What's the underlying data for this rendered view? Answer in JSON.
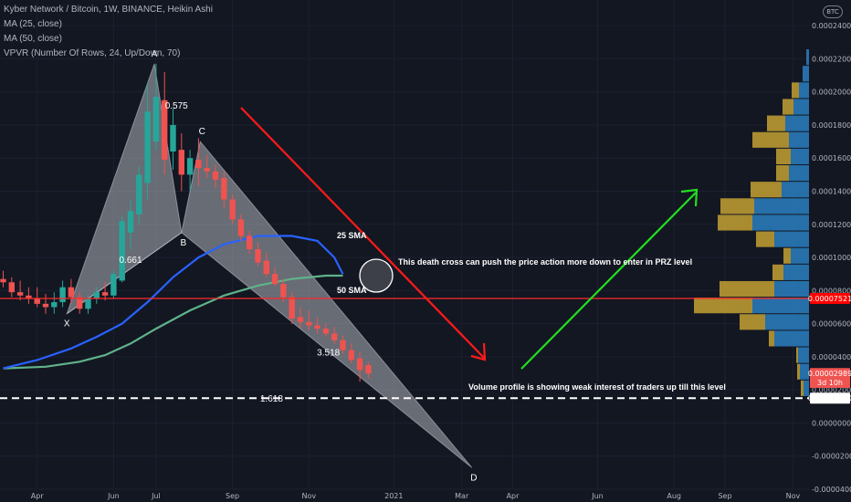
{
  "legend": {
    "symbol_line": "Kyber Network / Bitcoin, 1W, BINANCE, Heikin Ashi",
    "ma25": "MA (25, close)",
    "ma50": "MA (50, close)",
    "vpvr": "VPVR (Number Of Rows, 24, Up/Down, 70)"
  },
  "currency_badge": "BTC",
  "colors": {
    "background": "#131722",
    "up": "#26a69a",
    "down": "#ef5350",
    "ma25": "#2962ff",
    "ma50": "#5fb38a",
    "pattern_fill": "#d1d4dc",
    "vol_up": "#2a7fc1",
    "vol_down": "#c4a032",
    "red_line": "#ff2a2a",
    "red_arrow": "#ff1a1a",
    "green_arrow": "#22e01f"
  },
  "chart_data": {
    "type": "candlestick",
    "title": "Kyber Network / Bitcoin, 1W, BINANCE, Heikin Ashi",
    "y_axis": {
      "range": [
        -4e-05,
        0.00025
      ],
      "tick_labels": [
        "0.00024000",
        "0.00022000",
        "0.00020000",
        "0.00018000",
        "0.00016000",
        "0.00014000",
        "0.00012000",
        "0.00010000",
        "0.00008000",
        "0.00006000",
        "0.00004000",
        "0.00002000",
        "0.00000000",
        "-0.00002000",
        "-0.00004000"
      ],
      "tick_values": [
        0.00024,
        0.00022,
        0.0002,
        0.00018,
        0.00016,
        0.00014,
        0.00012,
        0.0001,
        8e-05,
        6e-05,
        4e-05,
        2e-05,
        0,
        -2e-05,
        -4e-05
      ]
    },
    "x_axis": {
      "tick_labels": [
        "Apr",
        "Jun",
        "Jul",
        "Sep",
        "Nov",
        "2021",
        "Mar",
        "Apr",
        "Jun",
        "Aug",
        "Sep",
        "Nov"
      ],
      "tick_weeks": [
        4,
        13,
        18,
        27,
        36,
        46,
        54,
        60,
        70,
        79,
        85,
        93
      ]
    },
    "price_markers": [
      {
        "label": "0.00007521",
        "value": 7.521e-05,
        "color": "#ff0000"
      },
      {
        "label": "0.00002989",
        "value": 2.989e-05,
        "color": "#ef5350"
      },
      {
        "label": "3d 10h",
        "value": 2.45e-05,
        "color": "#ef5350"
      },
      {
        "label": "0.00001500",
        "value": 1.5e-05,
        "color": "#ffffff"
      }
    ],
    "candles_heikin_ashi": [
      {
        "w": 0,
        "o": 8.7e-05,
        "h": 9.2e-05,
        "l": 8.2e-05,
        "c": 8.5e-05
      },
      {
        "w": 1,
        "o": 8.5e-05,
        "h": 8.8e-05,
        "l": 7.6e-05,
        "c": 7.9e-05
      },
      {
        "w": 2,
        "o": 7.9e-05,
        "h": 8.6e-05,
        "l": 7.4e-05,
        "c": 7.7e-05
      },
      {
        "w": 3,
        "o": 7.7e-05,
        "h": 8.2e-05,
        "l": 7.2e-05,
        "c": 7.5e-05
      },
      {
        "w": 4,
        "o": 7.5e-05,
        "h": 8.2e-05,
        "l": 7e-05,
        "c": 7.2e-05
      },
      {
        "w": 5,
        "o": 7.2e-05,
        "h": 7.8e-05,
        "l": 6.6e-05,
        "c": 7e-05
      },
      {
        "w": 6,
        "o": 7e-05,
        "h": 7.9e-05,
        "l": 6.6e-05,
        "c": 7.3e-05
      },
      {
        "w": 7,
        "o": 7.3e-05,
        "h": 8.6e-05,
        "l": 7e-05,
        "c": 8.2e-05
      },
      {
        "w": 8,
        "o": 8.2e-05,
        "h": 8.7e-05,
        "l": 7.2e-05,
        "c": 7.6e-05
      },
      {
        "w": 9,
        "o": 7.6e-05,
        "h": 7.9e-05,
        "l": 6.6e-05,
        "c": 6.9e-05
      },
      {
        "w": 10,
        "o": 6.9e-05,
        "h": 7.7e-05,
        "l": 6.6e-05,
        "c": 7.5e-05
      },
      {
        "w": 11,
        "o": 7.5e-05,
        "h": 8.2e-05,
        "l": 7.2e-05,
        "c": 7.9e-05
      },
      {
        "w": 12,
        "o": 7.9e-05,
        "h": 8.5e-05,
        "l": 7.4e-05,
        "c": 7.7e-05
      },
      {
        "w": 13,
        "o": 7.7e-05,
        "h": 9.2e-05,
        "l": 7.5e-05,
        "c": 9e-05
      },
      {
        "w": 14,
        "o": 8.6e-05,
        "h": 0.000125,
        "l": 8.5e-05,
        "c": 0.000122
      },
      {
        "w": 15,
        "o": 0.000115,
        "h": 0.000135,
        "l": 0.000105,
        "c": 0.000128
      },
      {
        "w": 16,
        "o": 0.000126,
        "h": 0.000155,
        "l": 0.00012,
        "c": 0.00015
      },
      {
        "w": 17,
        "o": 0.000145,
        "h": 0.000205,
        "l": 0.000135,
        "c": 0.000188
      },
      {
        "w": 18,
        "o": 0.00017,
        "h": 0.000217,
        "l": 0.000165,
        "c": 0.000197
      },
      {
        "w": 19,
        "o": 0.000195,
        "h": 0.000212,
        "l": 0.00015,
        "c": 0.000159
      },
      {
        "w": 20,
        "o": 0.000164,
        "h": 0.00019,
        "l": 0.000153,
        "c": 0.00018
      },
      {
        "w": 21,
        "o": 0.000165,
        "h": 0.000175,
        "l": 0.00014,
        "c": 0.00015
      },
      {
        "w": 22,
        "o": 0.00015,
        "h": 0.000165,
        "l": 0.00014,
        "c": 0.00016
      },
      {
        "w": 23,
        "o": 0.000159,
        "h": 0.000172,
        "l": 0.000143,
        "c": 0.000154
      },
      {
        "w": 24,
        "o": 0.000154,
        "h": 0.000162,
        "l": 0.000148,
        "c": 0.000152
      },
      {
        "w": 25,
        "o": 0.000152,
        "h": 0.000156,
        "l": 0.000142,
        "c": 0.000147
      },
      {
        "w": 26,
        "o": 0.000148,
        "h": 0.000152,
        "l": 0.00013,
        "c": 0.000135
      },
      {
        "w": 27,
        "o": 0.000135,
        "h": 0.000138,
        "l": 0.00012,
        "c": 0.000123
      },
      {
        "w": 28,
        "o": 0.000123,
        "h": 0.000126,
        "l": 0.00011,
        "c": 0.000113
      },
      {
        "w": 29,
        "o": 0.000113,
        "h": 0.000116,
        "l": 0.000102,
        "c": 0.000105
      },
      {
        "w": 30,
        "o": 0.000105,
        "h": 0.000109,
        "l": 9.5e-05,
        "c": 9.7e-05
      },
      {
        "w": 31,
        "o": 9.8e-05,
        "h": 0.000103,
        "l": 8.8e-05,
        "c": 9e-05
      },
      {
        "w": 32,
        "o": 9e-05,
        "h": 9.4e-05,
        "l": 8.3e-05,
        "c": 8.4e-05
      },
      {
        "w": 33,
        "o": 8.4e-05,
        "h": 8.7e-05,
        "l": 7.3e-05,
        "c": 7.6e-05
      },
      {
        "w": 34,
        "o": 7.6e-05,
        "h": 7.9e-05,
        "l": 6e-05,
        "c": 6.3e-05
      },
      {
        "w": 35,
        "o": 6.4e-05,
        "h": 7e-05,
        "l": 5.7e-05,
        "c": 6.1e-05
      },
      {
        "w": 36,
        "o": 6.1e-05,
        "h": 6.8e-05,
        "l": 5.6e-05,
        "c": 5.9e-05
      },
      {
        "w": 37,
        "o": 5.9e-05,
        "h": 6.4e-05,
        "l": 5.4e-05,
        "c": 5.7e-05
      },
      {
        "w": 38,
        "o": 5.7e-05,
        "h": 6e-05,
        "l": 5.2e-05,
        "c": 5.4e-05
      },
      {
        "w": 39,
        "o": 5.4e-05,
        "h": 5.8e-05,
        "l": 4.8e-05,
        "c": 5e-05
      },
      {
        "w": 40,
        "o": 5e-05,
        "h": 5.3e-05,
        "l": 4.2e-05,
        "c": 4.4e-05
      },
      {
        "w": 41,
        "o": 4.4e-05,
        "h": 4.8e-05,
        "l": 3.6e-05,
        "c": 3.8e-05
      },
      {
        "w": 42,
        "o": 3.9e-05,
        "h": 4.3e-05,
        "l": 2.5e-05,
        "c": 3.2e-05
      },
      {
        "w": 43,
        "o": 3.5e-05,
        "h": 3.7e-05,
        "l": 2.7e-05,
        "c": 2.99e-05
      }
    ],
    "ma25": [
      {
        "w": 0,
        "v": 3.3e-05
      },
      {
        "w": 4,
        "v": 3.8e-05
      },
      {
        "w": 8,
        "v": 4.5e-05
      },
      {
        "w": 11,
        "v": 5.2e-05
      },
      {
        "w": 14,
        "v": 6e-05
      },
      {
        "w": 17,
        "v": 7.3e-05
      },
      {
        "w": 20,
        "v": 8.8e-05
      },
      {
        "w": 23,
        "v": 0.0001
      },
      {
        "w": 26,
        "v": 0.000108
      },
      {
        "w": 30,
        "v": 0.000113
      },
      {
        "w": 34,
        "v": 0.000113
      },
      {
        "w": 37,
        "v": 0.00011
      },
      {
        "w": 39,
        "v": 0.0001
      },
      {
        "w": 40,
        "v": 9e-05
      }
    ],
    "ma50": [
      {
        "w": 0,
        "v": 3.3e-05
      },
      {
        "w": 5,
        "v": 3.4e-05
      },
      {
        "w": 9,
        "v": 3.7e-05
      },
      {
        "w": 12,
        "v": 4.1e-05
      },
      {
        "w": 15,
        "v": 4.8e-05
      },
      {
        "w": 18,
        "v": 5.7e-05
      },
      {
        "w": 22,
        "v": 6.8e-05
      },
      {
        "w": 26,
        "v": 7.7e-05
      },
      {
        "w": 30,
        "v": 8.3e-05
      },
      {
        "w": 34,
        "v": 8.7e-05
      },
      {
        "w": 38,
        "v": 8.9e-05
      },
      {
        "w": 40,
        "v": 8.9e-05
      }
    ],
    "harmonic_pattern": {
      "points": [
        {
          "label": "X",
          "w": 7.5,
          "v": 6.6e-05
        },
        {
          "label": "A",
          "w": 17.8,
          "v": 0.000217
        },
        {
          "label": "B",
          "w": 21.0,
          "v": 0.000115
        },
        {
          "label": "C",
          "w": 23.2,
          "v": 0.00017
        },
        {
          "label": "D",
          "w": 55.2,
          "v": -2.7e-05
        }
      ],
      "ratios": [
        {
          "label": "0.575",
          "w": 20.4,
          "v": 0.000192
        },
        {
          "label": "0.661",
          "w": 15.0,
          "v": 9.9e-05
        },
        {
          "label": "3.518",
          "w": 38.3,
          "v": 4.3e-05
        },
        {
          "label": "1.618",
          "w": 31.6,
          "v": 1.5e-05
        }
      ]
    },
    "annotations": {
      "ma25_label": "25 SMA",
      "ma50_label": "50 SMA",
      "death_cross_note": "This death cross can push the price action more down to enter in PRZ level",
      "volume_note": "Volume profile is showing weak interest of traders up till this level"
    },
    "horizontal_lines": [
      {
        "value": 7.521e-05,
        "style": "solid",
        "color": "#ff2a2a"
      },
      {
        "value": 1.5e-05,
        "style": "dashed",
        "color": "#ffffff"
      }
    ],
    "volume_profile": [
      {
        "price": 0.000221,
        "up": 3,
        "down": 0
      },
      {
        "price": 0.000211,
        "up": 7,
        "down": 0
      },
      {
        "price": 0.000201,
        "up": 11,
        "down": 8
      },
      {
        "price": 0.000191,
        "up": 17,
        "down": 12
      },
      {
        "price": 0.000181,
        "up": 26,
        "down": 20
      },
      {
        "price": 0.000171,
        "up": 22,
        "down": 40
      },
      {
        "price": 0.000161,
        "up": 20,
        "down": 16
      },
      {
        "price": 0.000151,
        "up": 22,
        "down": 14
      },
      {
        "price": 0.000141,
        "up": 30,
        "down": 34
      },
      {
        "price": 0.000131,
        "up": 60,
        "down": 37
      },
      {
        "price": 0.000121,
        "up": 62,
        "down": 38
      },
      {
        "price": 0.000111,
        "up": 38,
        "down": 20
      },
      {
        "price": 0.000101,
        "up": 20,
        "down": 8
      },
      {
        "price": 9.1e-05,
        "up": 28,
        "down": 12
      },
      {
        "price": 8.1e-05,
        "up": 38,
        "down": 60
      },
      {
        "price": 7.1e-05,
        "up": 62,
        "down": 64
      },
      {
        "price": 6.1e-05,
        "up": 48,
        "down": 28
      },
      {
        "price": 5.1e-05,
        "up": 38,
        "down": 6
      },
      {
        "price": 4.1e-05,
        "up": 12,
        "down": 2
      },
      {
        "price": 3.1e-05,
        "up": 10,
        "down": 3
      },
      {
        "price": 2.1e-05,
        "up": 6,
        "down": 3
      }
    ]
  }
}
